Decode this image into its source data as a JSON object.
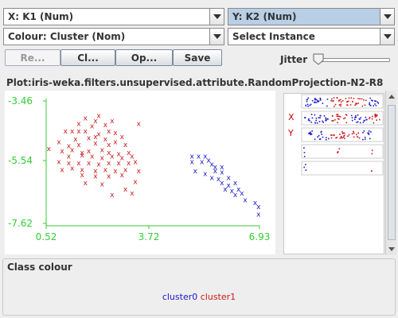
{
  "controls": {
    "x_axis": "X: K1 (Num)",
    "y_axis": "Y: K2 (Num)",
    "colour": "Colour: Cluster (Nom)",
    "instance": "Select Instance"
  },
  "buttons": {
    "reset": "Re...",
    "clear": "Cl...",
    "open": "Op...",
    "save": "Save"
  },
  "jitter": {
    "label": "Jitter",
    "value": 0
  },
  "plot": {
    "title": "Plot:iris-weka.filters.unsupervised.attribute.RandomProjection-N2-R8",
    "x_ticks": [
      "0.52",
      "3.72",
      "6.93"
    ],
    "y_ticks": [
      "-3.46",
      "-5.54",
      "-7.62"
    ],
    "marker": "x"
  },
  "mini_axes": {
    "x_label": "X",
    "y_label": "Y"
  },
  "class_colour": {
    "title": "Class colour",
    "legend": [
      {
        "name": "cluster0",
        "color": "#1a1acc"
      },
      {
        "name": "cluster1",
        "color": "#cc1a1a"
      }
    ]
  },
  "chart_data": {
    "type": "scatter",
    "xlim": [
      0.52,
      6.93
    ],
    "ylim": [
      -7.62,
      -3.46
    ],
    "series": [
      {
        "name": "cluster1",
        "color": "#cc1a1a",
        "points": [
          [
            1.7,
            -3.6
          ],
          [
            2.1,
            -3.5
          ],
          [
            2.0,
            -3.7
          ],
          [
            2.5,
            -3.7
          ],
          [
            1.5,
            -3.8
          ],
          [
            1.9,
            -3.9
          ],
          [
            2.3,
            -3.85
          ],
          [
            3.3,
            -3.8
          ],
          [
            1.1,
            -4.1
          ],
          [
            1.3,
            -4.1
          ],
          [
            1.5,
            -4.1
          ],
          [
            1.7,
            -4.1
          ],
          [
            2.1,
            -4.2
          ],
          [
            2.4,
            -4.1
          ],
          [
            2.6,
            -4.15
          ],
          [
            1.4,
            -4.4
          ],
          [
            1.8,
            -4.35
          ],
          [
            2.0,
            -4.3
          ],
          [
            2.3,
            -4.4
          ],
          [
            2.8,
            -4.3
          ],
          [
            0.9,
            -4.5
          ],
          [
            1.2,
            -4.65
          ],
          [
            1.5,
            -4.6
          ],
          [
            2.0,
            -4.55
          ],
          [
            2.4,
            -4.6
          ],
          [
            2.6,
            -4.5
          ],
          [
            2.9,
            -4.6
          ],
          [
            0.6,
            -4.75
          ],
          [
            1.0,
            -4.85
          ],
          [
            1.3,
            -4.8
          ],
          [
            1.6,
            -4.9
          ],
          [
            1.8,
            -4.85
          ],
          [
            2.2,
            -4.8
          ],
          [
            2.4,
            -4.9
          ],
          [
            2.7,
            -4.95
          ],
          [
            3.0,
            -4.9
          ],
          [
            1.2,
            -5.05
          ],
          [
            1.6,
            -5.0
          ],
          [
            1.9,
            -5.05
          ],
          [
            2.2,
            -5.1
          ],
          [
            2.5,
            -5.05
          ],
          [
            2.8,
            -5.1
          ],
          [
            3.1,
            -5.05
          ],
          [
            0.9,
            -5.25
          ],
          [
            1.2,
            -5.3
          ],
          [
            1.5,
            -5.3
          ],
          [
            1.8,
            -5.3
          ],
          [
            2.1,
            -5.35
          ],
          [
            2.4,
            -5.3
          ],
          [
            2.7,
            -5.3
          ],
          [
            3.0,
            -5.3
          ],
          [
            3.2,
            -5.25
          ],
          [
            1.0,
            -5.55
          ],
          [
            1.3,
            -5.5
          ],
          [
            1.6,
            -5.55
          ],
          [
            2.0,
            -5.6
          ],
          [
            2.3,
            -5.55
          ],
          [
            2.6,
            -5.6
          ],
          [
            2.9,
            -5.55
          ],
          [
            3.3,
            -5.6
          ],
          [
            1.6,
            -5.75
          ],
          [
            2.0,
            -5.8
          ],
          [
            2.4,
            -5.8
          ],
          [
            2.8,
            -5.75
          ],
          [
            1.7,
            -6.05
          ],
          [
            2.2,
            -6.1
          ],
          [
            3.2,
            -6.0
          ],
          [
            2.9,
            -6.3
          ],
          [
            2.5,
            -6.5
          ],
          [
            3.1,
            -6.45
          ]
        ]
      },
      {
        "name": "cluster0",
        "color": "#1a1acc",
        "points": [
          [
            4.9,
            -5.05
          ],
          [
            5.1,
            -5.05
          ],
          [
            5.3,
            -5.05
          ],
          [
            4.9,
            -5.25
          ],
          [
            5.2,
            -5.25
          ],
          [
            5.4,
            -5.2
          ],
          [
            5.5,
            -5.35
          ],
          [
            5.6,
            -5.45
          ],
          [
            5.8,
            -5.45
          ],
          [
            5.0,
            -5.6
          ],
          [
            5.3,
            -5.7
          ],
          [
            5.6,
            -5.6
          ],
          [
            5.8,
            -5.65
          ],
          [
            5.5,
            -5.85
          ],
          [
            5.7,
            -5.9
          ],
          [
            6.0,
            -5.85
          ],
          [
            5.8,
            -6.05
          ],
          [
            6.0,
            -6.15
          ],
          [
            6.2,
            -6.05
          ],
          [
            5.9,
            -6.3
          ],
          [
            6.1,
            -6.35
          ],
          [
            6.3,
            -6.3
          ],
          [
            6.2,
            -6.5
          ],
          [
            6.4,
            -6.45
          ],
          [
            6.5,
            -6.7
          ],
          [
            6.8,
            -6.8
          ],
          [
            6.9,
            -6.95
          ],
          [
            6.9,
            -7.25
          ]
        ]
      }
    ]
  }
}
